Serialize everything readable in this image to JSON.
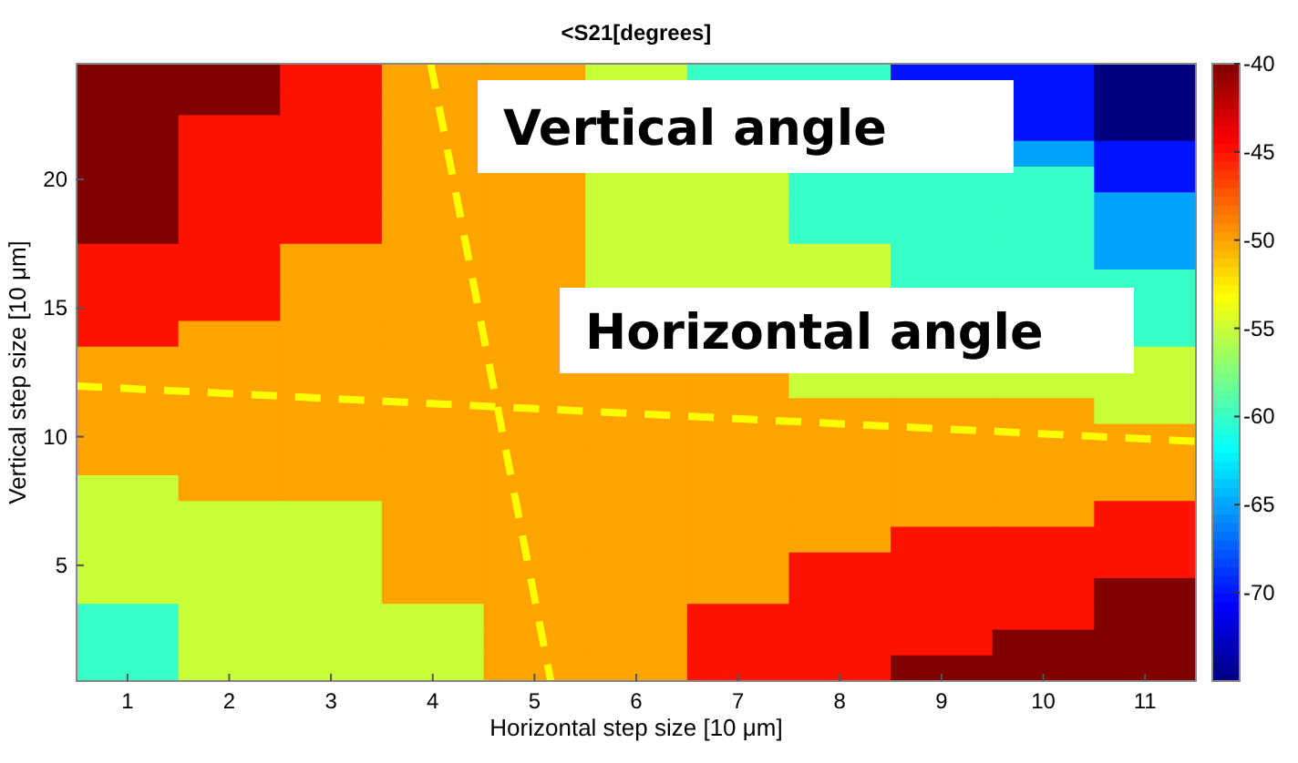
{
  "chart_data": {
    "type": "heatmap",
    "title": "<S21[degrees]",
    "xlabel": "Horizontal step size [10 μm]",
    "ylabel": "Vertical step size [10 μm]",
    "annotations": [
      "Vertical angle",
      "Horizontal angle"
    ],
    "xlim": [
      0.5,
      11.5
    ],
    "ylim": [
      0.5,
      24.5
    ],
    "xticks": [
      1,
      2,
      3,
      4,
      5,
      6,
      7,
      8,
      9,
      10,
      11
    ],
    "yticks": [
      5,
      10,
      15,
      20
    ],
    "cells": [
      [
        -40,
        -40,
        -45,
        -50,
        -50,
        -55,
        -60,
        -60,
        -70,
        -70,
        -75
      ],
      [
        -40,
        -40,
        -45,
        -50,
        null,
        null,
        null,
        null,
        null,
        -70,
        -75
      ],
      [
        -40,
        -45,
        -45,
        -50,
        null,
        null,
        null,
        null,
        null,
        -70,
        -75
      ],
      [
        -40,
        -45,
        -45,
        -50,
        null,
        null,
        null,
        null,
        null,
        -65,
        -70
      ],
      [
        -40,
        -45,
        -45,
        -50,
        -50,
        -55,
        -55,
        -60,
        -60,
        -60,
        -70
      ],
      [
        -40,
        -45,
        -45,
        -50,
        -50,
        -55,
        -55,
        -60,
        -60,
        -60,
        -65
      ],
      [
        -40,
        -45,
        -45,
        -50,
        -50,
        -55,
        -55,
        -60,
        -60,
        -60,
        -65
      ],
      [
        -45,
        -45,
        -50,
        -50,
        -50,
        -55,
        -55,
        -55,
        -60,
        -60,
        -65
      ],
      [
        -45,
        -45,
        -50,
        -50,
        -50,
        -55,
        -55,
        -55,
        -60,
        -60,
        -60
      ],
      [
        -45,
        -45,
        -50,
        -50,
        -50,
        null,
        null,
        null,
        null,
        null,
        -60
      ],
      [
        -45,
        -50,
        -50,
        -50,
        -50,
        null,
        null,
        null,
        null,
        null,
        -60
      ],
      [
        -50,
        -50,
        -50,
        -50,
        -50,
        null,
        null,
        null,
        null,
        null,
        -55
      ],
      [
        -50,
        -50,
        -50,
        -50,
        -50,
        -50,
        -50,
        -55,
        -55,
        -55,
        -55
      ],
      [
        -50,
        -50,
        -50,
        -50,
        -50,
        -50,
        -50,
        -50,
        -50,
        -50,
        -55
      ],
      [
        -50,
        -50,
        -50,
        -50,
        -50,
        -50,
        -50,
        -50,
        -50,
        -50,
        -50
      ],
      [
        -50,
        -50,
        -50,
        -50,
        -50,
        -50,
        -50,
        -50,
        -50,
        -50,
        -50
      ],
      [
        -55,
        -50,
        -50,
        -50,
        -50,
        -50,
        -50,
        -50,
        -50,
        -50,
        -50
      ],
      [
        -55,
        -55,
        -55,
        -50,
        -50,
        -50,
        -50,
        -50,
        -50,
        -50,
        -45
      ],
      [
        -55,
        -55,
        -55,
        -50,
        -50,
        -50,
        -50,
        -50,
        -45,
        -45,
        -45
      ],
      [
        -55,
        -55,
        -55,
        -50,
        -50,
        -50,
        -50,
        -45,
        -45,
        -45,
        -45
      ],
      [
        -55,
        -55,
        -55,
        -50,
        -50,
        -50,
        -50,
        -45,
        -45,
        -45,
        -40
      ],
      [
        -60,
        -55,
        -55,
        -55,
        -50,
        -50,
        -45,
        -45,
        -45,
        -45,
        -40
      ],
      [
        -60,
        -55,
        -55,
        -55,
        -50,
        -50,
        -45,
        -45,
        -45,
        -40,
        -40
      ],
      [
        -60,
        -55,
        -55,
        -55,
        -50,
        -50,
        -45,
        -45,
        -40,
        -40,
        -40
      ]
    ],
    "clim": [
      -75,
      -40
    ],
    "cticks": [
      -40,
      -45,
      -50,
      -55,
      -60,
      -65,
      -70
    ],
    "series": [
      {
        "type": "line",
        "color": "#ffff00",
        "line_style": "dashed",
        "x": [
          3.98,
          5.16
        ],
        "values": [
          24.5,
          0.5
        ]
      },
      {
        "type": "line",
        "color": "#ffff00",
        "line_style": "dashed",
        "x": [
          0.5,
          11.5
        ],
        "values": [
          11.97,
          9.82
        ]
      }
    ]
  }
}
